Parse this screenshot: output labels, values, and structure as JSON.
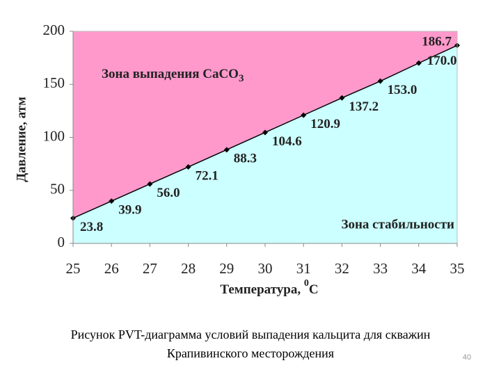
{
  "chart_data": {
    "type": "line",
    "x": [
      25,
      26,
      27,
      28,
      29,
      30,
      31,
      32,
      33,
      34,
      35
    ],
    "xlim": [
      25,
      35
    ],
    "xticks": [
      25,
      26,
      27,
      28,
      29,
      30,
      31,
      32,
      33,
      34,
      35
    ],
    "ylim": [
      0,
      200
    ],
    "yticks": [
      0,
      50,
      100,
      150,
      200
    ],
    "ylabel": "Давление, атм",
    "xlabel": {
      "main": "Температура, ",
      "sup": "0",
      "unit": "C"
    },
    "series": [
      {
        "color": "#000000",
        "values": [
          23.8,
          39.9,
          56.0,
          72.1,
          88.3,
          104.6,
          120.9,
          137.2,
          153.0,
          170.0,
          186.7
        ],
        "value_labels": [
          "23.8",
          "39.9",
          "56.0",
          "72.1",
          "88.3",
          "104.6",
          "120.9",
          "137.2",
          "153.0",
          "170.0",
          "186.7"
        ]
      }
    ],
    "area_above_color": "#ff99cc",
    "area_below_color": "#ccffff",
    "annotations": {
      "above": {
        "main": "Зона выпадения CaCO",
        "sub": "3"
      },
      "below": "Зона стабильности"
    }
  },
  "caption": [
    "Рисунок  PVT-диаграмма условий выпадения кальцита для скважин",
    "Крапивинского месторождения"
  ],
  "page_number": "40"
}
